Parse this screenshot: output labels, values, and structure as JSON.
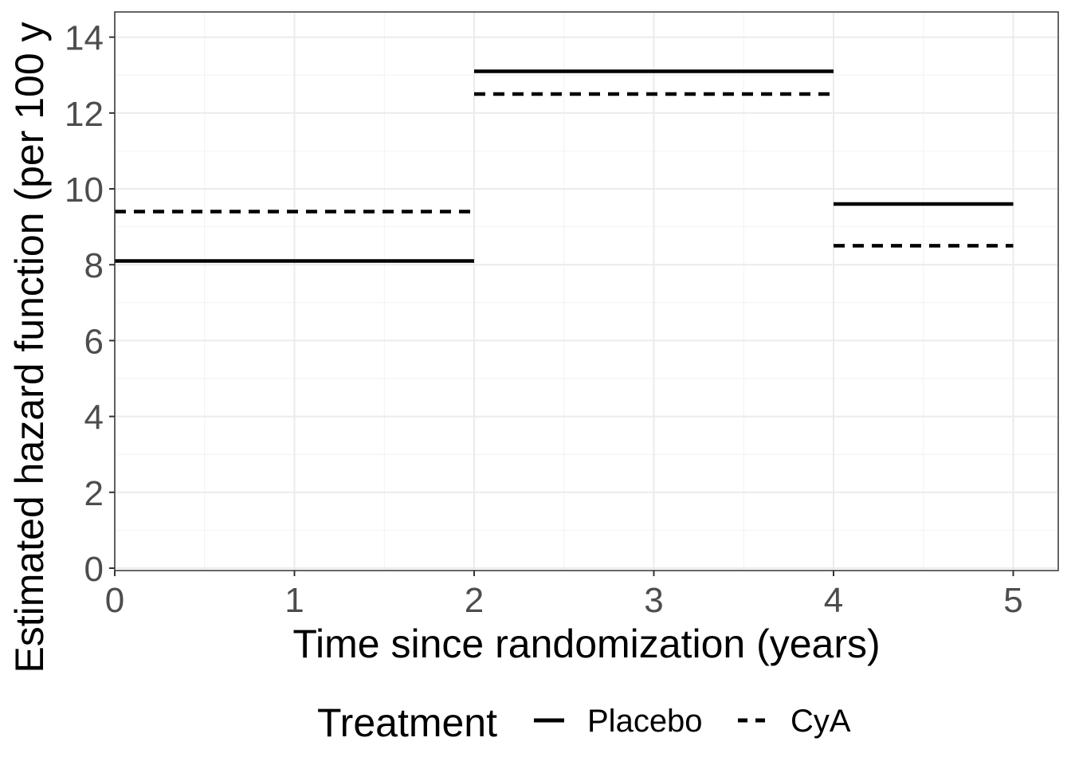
{
  "chart_data": {
    "type": "line",
    "style": "step-segments",
    "xlabel": "Time since randomization (years)",
    "ylabel": "Estimated hazard function (per 100 y",
    "xlim": [
      0,
      5.25
    ],
    "ylim": [
      0,
      14.7
    ],
    "x_ticks": [
      0,
      1,
      2,
      3,
      4,
      5
    ],
    "y_ticks": [
      0,
      2,
      4,
      6,
      8,
      10,
      12,
      14
    ],
    "grid": true,
    "legend": {
      "title": "Treatment",
      "position": "bottom"
    },
    "series": [
      {
        "name": "Placebo",
        "linetype": "solid",
        "color": "#000000",
        "segments": [
          {
            "x_start": 0,
            "x_end": 2,
            "y": 8.1
          },
          {
            "x_start": 2,
            "x_end": 4,
            "y": 13.1
          },
          {
            "x_start": 4,
            "x_end": 5,
            "y": 9.6
          }
        ]
      },
      {
        "name": "CyA",
        "linetype": "dashed",
        "color": "#000000",
        "segments": [
          {
            "x_start": 0,
            "x_end": 2,
            "y": 9.4
          },
          {
            "x_start": 2,
            "x_end": 4,
            "y": 12.5
          },
          {
            "x_start": 4,
            "x_end": 5,
            "y": 8.5
          }
        ]
      }
    ]
  }
}
